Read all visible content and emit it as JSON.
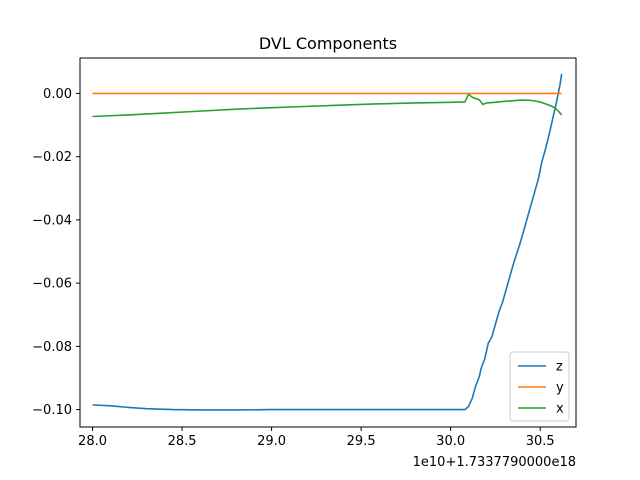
{
  "chart_data": {
    "type": "line",
    "title": "DVL Components",
    "xlabel": "",
    "ylabel": "",
    "x_offset_label": "1e10+1.7337790000e18",
    "xlim": [
      27.93,
      30.7
    ],
    "ylim": [
      -0.1055,
      0.0112
    ],
    "x_ticks": [
      28.0,
      28.5,
      29.0,
      29.5,
      30.0,
      30.5
    ],
    "x_tick_labels": [
      "28.0",
      "28.5",
      "29.0",
      "29.5",
      "30.0",
      "30.5"
    ],
    "y_ticks": [
      0.0,
      -0.02,
      -0.04,
      -0.06,
      -0.08,
      -0.1
    ],
    "y_tick_labels": [
      "0.00",
      "−0.02",
      "−0.04",
      "−0.06",
      "−0.08",
      "−0.10"
    ],
    "grid": false,
    "legend_position": "lower-right",
    "series": [
      {
        "name": "z",
        "color": "#1f77b4",
        "points": [
          [
            28.0,
            -0.0985
          ],
          [
            28.1,
            -0.0988
          ],
          [
            28.2,
            -0.0993
          ],
          [
            28.3,
            -0.0997
          ],
          [
            28.45,
            -0.1
          ],
          [
            28.6,
            -0.1001
          ],
          [
            28.8,
            -0.1001
          ],
          [
            29.0,
            -0.1
          ],
          [
            29.2,
            -0.1
          ],
          [
            29.4,
            -0.1
          ],
          [
            29.6,
            -0.1
          ],
          [
            29.8,
            -0.1
          ],
          [
            30.0,
            -0.1
          ],
          [
            30.08,
            -0.1
          ],
          [
            30.1,
            -0.099
          ],
          [
            30.12,
            -0.0965
          ],
          [
            30.14,
            -0.0925
          ],
          [
            30.16,
            -0.0895
          ],
          [
            30.17,
            -0.087
          ],
          [
            30.19,
            -0.084
          ],
          [
            30.21,
            -0.079
          ],
          [
            30.23,
            -0.077
          ],
          [
            30.25,
            -0.073
          ],
          [
            30.27,
            -0.069
          ],
          [
            30.29,
            -0.066
          ],
          [
            30.31,
            -0.062
          ],
          [
            30.33,
            -0.058
          ],
          [
            30.35,
            -0.054
          ],
          [
            30.37,
            -0.0505
          ],
          [
            30.39,
            -0.047
          ],
          [
            30.41,
            -0.043
          ],
          [
            30.43,
            -0.039
          ],
          [
            30.45,
            -0.035
          ],
          [
            30.47,
            -0.031
          ],
          [
            30.49,
            -0.027
          ],
          [
            30.51,
            -0.0215
          ],
          [
            30.53,
            -0.0175
          ],
          [
            30.55,
            -0.013
          ],
          [
            30.57,
            -0.008
          ],
          [
            30.59,
            -0.003
          ],
          [
            30.61,
            0.0025
          ],
          [
            30.62,
            0.0062
          ]
        ]
      },
      {
        "name": "y",
        "color": "#ff7f0e",
        "points": [
          [
            28.0,
            0.0
          ],
          [
            30.62,
            0.0
          ]
        ]
      },
      {
        "name": "x",
        "color": "#2ca02c",
        "points": [
          [
            28.0,
            -0.0073
          ],
          [
            28.2,
            -0.0068
          ],
          [
            28.4,
            -0.0062
          ],
          [
            28.6,
            -0.0056
          ],
          [
            28.8,
            -0.005
          ],
          [
            29.0,
            -0.0045
          ],
          [
            29.2,
            -0.0041
          ],
          [
            29.4,
            -0.0037
          ],
          [
            29.6,
            -0.0033
          ],
          [
            29.8,
            -0.003
          ],
          [
            30.0,
            -0.0028
          ],
          [
            30.08,
            -0.0027
          ],
          [
            30.1,
            -0.0002
          ],
          [
            30.12,
            -0.0012
          ],
          [
            30.16,
            -0.002
          ],
          [
            30.18,
            -0.0035
          ],
          [
            30.2,
            -0.003
          ],
          [
            30.25,
            -0.0028
          ],
          [
            30.3,
            -0.0025
          ],
          [
            30.35,
            -0.0023
          ],
          [
            30.4,
            -0.0021
          ],
          [
            30.45,
            -0.0022
          ],
          [
            30.5,
            -0.0027
          ],
          [
            30.55,
            -0.0037
          ],
          [
            30.58,
            -0.0045
          ],
          [
            30.6,
            -0.0055
          ],
          [
            30.62,
            -0.0068
          ]
        ]
      }
    ]
  }
}
